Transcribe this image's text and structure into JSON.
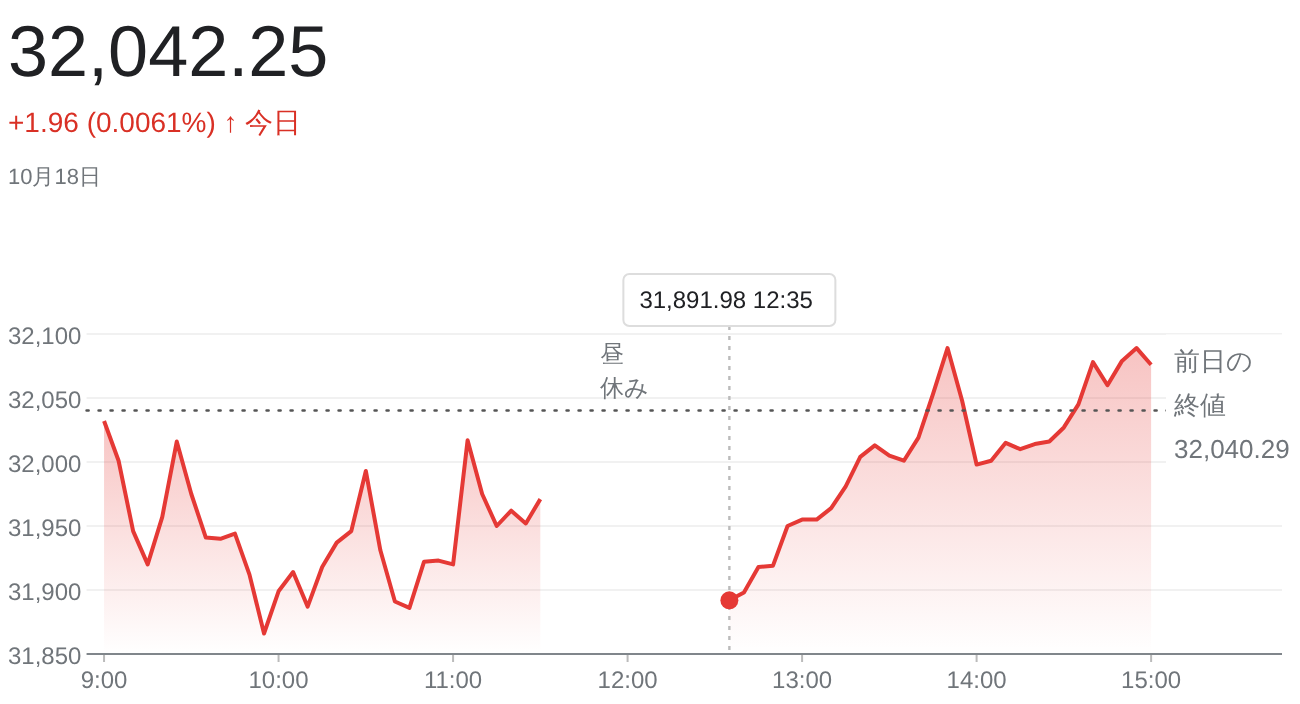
{
  "chart_data": {
    "type": "area",
    "title": "32,042.25",
    "subtitle": "+1.96 (0.0061%) ↑ 今日",
    "annotations": [
      "10月18日",
      "昼休み",
      "31,891.98 12:35"
    ],
    "series": [
      {
        "color": "#e53935",
        "x": [
          9.0,
          9.0833,
          9.1667,
          9.25,
          9.3333,
          9.4167,
          9.5,
          9.5833,
          9.6667,
          9.75,
          9.8333,
          9.9167,
          10.0,
          10.0833,
          10.1667,
          10.25,
          10.3333,
          10.4167,
          10.5,
          10.5833,
          10.6667,
          10.75,
          10.8333,
          10.9167,
          11.0,
          11.0833,
          11.1667,
          11.25,
          11.3333,
          11.4167,
          11.5
        ],
        "values": [
          32032,
          32001,
          31946,
          31920,
          31957,
          32016,
          31975,
          31941,
          31940,
          31944,
          31912,
          31866,
          31899,
          31914,
          31887,
          31918,
          31937,
          31946,
          31993,
          31931,
          31891,
          31886,
          31922,
          31923,
          31920,
          32017,
          31975,
          31950,
          31962,
          31952,
          31971
        ]
      },
      {
        "color": "#e53935",
        "x": [
          12.5833,
          12.6667,
          12.75,
          12.8333,
          12.9167,
          13.0,
          13.0833,
          13.1667,
          13.25,
          13.3333,
          13.4167,
          13.5,
          13.5833,
          13.6667,
          13.75,
          13.8333,
          13.9167,
          14.0,
          14.0833,
          14.1667,
          14.25,
          14.3333,
          14.4167,
          14.5,
          14.5833,
          14.6667,
          14.75,
          14.8333,
          14.9167,
          15.0
        ],
        "values": [
          31891.98,
          31898,
          31918,
          31919,
          31950,
          31955,
          31955,
          31964,
          31981,
          32004,
          32013,
          32005,
          32001,
          32019,
          32053,
          32089,
          32048,
          31998,
          32001,
          32015,
          32010,
          32014,
          32016,
          32027,
          32045,
          32078,
          32060,
          32079,
          32089,
          32076
        ]
      }
    ],
    "xlim": [
      8.9,
      15.75
    ],
    "xticks": [
      {
        "value": 9,
        "label": "9:00"
      },
      {
        "value": 10,
        "label": "10:00"
      },
      {
        "value": 11,
        "label": "11:00"
      },
      {
        "value": 12,
        "label": "12:00"
      },
      {
        "value": 13,
        "label": "13:00"
      },
      {
        "value": 14,
        "label": "14:00"
      },
      {
        "value": 15,
        "label": "15:00"
      }
    ],
    "ylim": [
      31850,
      32100
    ],
    "yticks": [
      {
        "value": 31850,
        "label": "31,850"
      },
      {
        "value": 31900,
        "label": "31,900"
      },
      {
        "value": 31950,
        "label": "31,950"
      },
      {
        "value": 32000,
        "label": "32,000"
      },
      {
        "value": 32050,
        "label": "32,050"
      },
      {
        "value": 32100,
        "label": "32,100"
      }
    ],
    "grid": "y",
    "ref_lines": [
      {
        "axis": "y",
        "value": 32040.29,
        "label": "前日の終値\n32,040.29",
        "color": "#555555",
        "line_style": "dotted"
      },
      {
        "axis": "x",
        "value": 12.5833,
        "color": "#bbbbbb",
        "line_style": "dotted"
      }
    ]
  }
}
